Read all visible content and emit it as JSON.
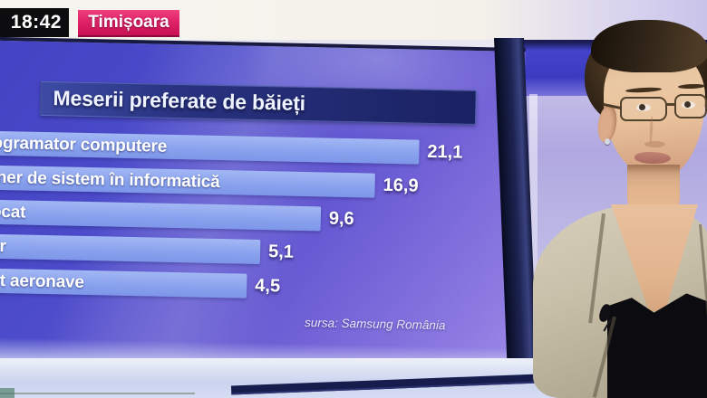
{
  "broadcast": {
    "time": "18:42",
    "location": "Timișoara"
  },
  "chart_data": {
    "type": "bar",
    "orientation": "horizontal",
    "title": "Meserii preferate de băieți",
    "categories_visible": [
      "ogramator computere",
      "iner de sistem în informatică",
      "ocat",
      "er",
      "ot aeronave"
    ],
    "values": [
      21.1,
      16.9,
      9.6,
      5.1,
      4.5
    ],
    "values_display": [
      "21,1",
      "16,9",
      "9,6",
      "5,1",
      "4,5"
    ],
    "source": "sursa: Samsung România",
    "xlim": [
      0,
      25
    ],
    "grid": false,
    "legend": false
  },
  "colors": {
    "accent_pink": "#d6155c",
    "screen_blue": "#4a4ac8",
    "bar_blue": "#8ca6ee",
    "title_bar_navy": "#232c6e",
    "clock_bg": "#0d0d0f",
    "bezel_navy": "#1d2452"
  }
}
